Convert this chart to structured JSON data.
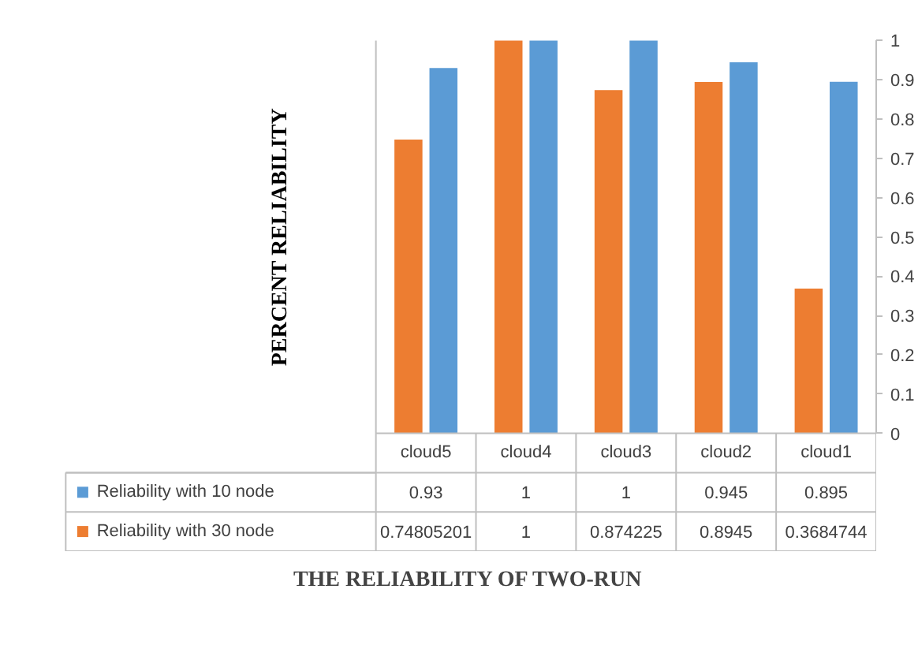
{
  "chart_data": {
    "type": "bar",
    "xlabel": "THE RELIABILITY OF TWO-RUN",
    "ylabel": "PERCENT RELIABILITY",
    "categories": [
      "cloud5",
      "cloud4",
      "cloud3",
      "cloud2",
      "cloud1"
    ],
    "series": [
      {
        "name": "Reliability with 30 node",
        "color": "#ed7d31",
        "values": [
          0.74805201,
          1,
          0.874225,
          0.8945,
          0.3684744
        ]
      },
      {
        "name": "Reliability with 10 node",
        "color": "#5b9bd5",
        "values": [
          0.93,
          1,
          1,
          0.945,
          0.895
        ]
      }
    ],
    "ylim": [
      0,
      1
    ],
    "yticks": [
      0,
      0.1,
      0.2,
      0.3,
      0.4,
      0.5,
      0.6,
      0.7,
      0.8,
      0.9,
      1
    ],
    "data_labels": true,
    "legend": "bottom",
    "grid": false
  }
}
